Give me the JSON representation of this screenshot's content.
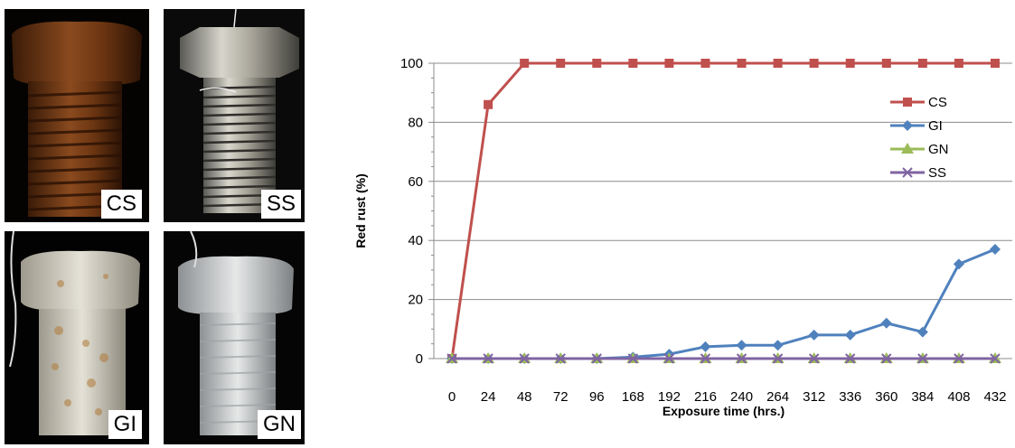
{
  "photos": [
    {
      "key": "cs",
      "label": "CS"
    },
    {
      "key": "ss",
      "label": "SS"
    },
    {
      "key": "gi",
      "label": "GI"
    },
    {
      "key": "gn",
      "label": "GN"
    }
  ],
  "chart_data": {
    "type": "line",
    "title": "",
    "xlabel": "Exposure time (hrs.)",
    "ylabel": "Red rust (%)",
    "categories": [
      "0",
      "24",
      "48",
      "72",
      "96",
      "168",
      "192",
      "216",
      "240",
      "264",
      "312",
      "336",
      "360",
      "384",
      "408",
      "432"
    ],
    "ylim": [
      0,
      100
    ],
    "yticks": [
      0,
      20,
      40,
      60,
      80,
      100
    ],
    "grid": true,
    "legend_position": "right",
    "series": [
      {
        "name": "CS",
        "color": "#c0504d",
        "marker": "square",
        "values": [
          0,
          86,
          100,
          100,
          100,
          100,
          100,
          100,
          100,
          100,
          100,
          100,
          100,
          100,
          100,
          100
        ]
      },
      {
        "name": "GI",
        "color": "#4f81bd",
        "marker": "diamond",
        "values": [
          0,
          0,
          0,
          0,
          0,
          0.5,
          1.5,
          4,
          4.5,
          4.5,
          8,
          8,
          12,
          9,
          32,
          37
        ]
      },
      {
        "name": "GN",
        "color": "#9bbb59",
        "marker": "triangle",
        "values": [
          0,
          0,
          0,
          0,
          0,
          0,
          0,
          0,
          0,
          0,
          0,
          0,
          0,
          0,
          0,
          0
        ]
      },
      {
        "name": "SS",
        "color": "#8064a2",
        "marker": "x",
        "values": [
          0,
          0,
          0,
          0,
          0,
          0,
          0,
          0,
          0,
          0,
          0,
          0,
          0,
          0,
          0,
          0
        ]
      }
    ]
  }
}
